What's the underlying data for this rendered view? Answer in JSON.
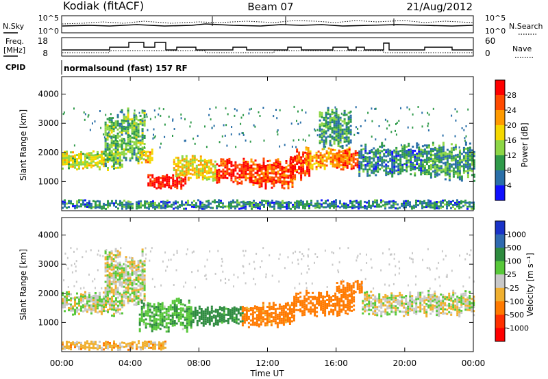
{
  "header": {
    "station": "Kodiak (fitACF)",
    "beam": "Beam 07",
    "date": "21/Aug/2012"
  },
  "noise_panel": {
    "left_label": "N.Sky",
    "right_label": "N.Search",
    "left_ticks": [
      "10^5",
      "10^0"
    ],
    "right_ticks": [
      "10^5",
      "10^0"
    ],
    "right_legend_style": "dotted"
  },
  "freq_panel": {
    "left_label_line1": "Freq.",
    "left_label_line2": "[MHz]",
    "right_label": "Nave",
    "left_ticks": [
      "18",
      "8"
    ],
    "right_ticks": [
      "60",
      "0"
    ],
    "right_legend_style": "dotted"
  },
  "cpid": {
    "label": "CPID",
    "text": "normalsound (fast) 157 RF"
  },
  "x_axis": {
    "label": "Time UT",
    "ticks": [
      "00:00",
      "04:00",
      "08:00",
      "12:00",
      "16:00",
      "20:00",
      "00:00"
    ],
    "hours": [
      0,
      4,
      8,
      12,
      16,
      20,
      24
    ]
  },
  "chart_data": [
    {
      "type": "heatmap",
      "panel": "power",
      "ylabel": "Slant Range [km]",
      "yticks": [
        1000,
        2000,
        3000,
        4000
      ],
      "ylim": [
        0,
        4600
      ],
      "xlim_hours": [
        0,
        24
      ],
      "colorbar": {
        "label": "Power [dB]",
        "ticks": [
          "28",
          "24",
          "20",
          "16",
          "12",
          "8",
          "4"
        ],
        "colors": [
          "#ff0000",
          "#ff4a00",
          "#ff9a00",
          "#f5d800",
          "#8dd646",
          "#2f9a4a",
          "#2a6fa8",
          "#1010ff"
        ]
      },
      "bands": [
        {
          "from_h": 0.0,
          "to_h": 3.5,
          "range_km": [
            1500,
            2000
          ],
          "level": 14
        },
        {
          "from_h": 2.5,
          "to_h": 4.8,
          "range_km": [
            1800,
            3300
          ],
          "level": 10
        },
        {
          "from_h": 4.5,
          "to_h": 5.3,
          "range_km": [
            1700,
            2100
          ],
          "level": 18
        },
        {
          "from_h": 5.0,
          "to_h": 7.2,
          "range_km": [
            800,
            1200
          ],
          "level": 28
        },
        {
          "from_h": 6.5,
          "to_h": 9.0,
          "range_km": [
            1150,
            1800
          ],
          "level": 16
        },
        {
          "from_h": 9.0,
          "to_h": 11.0,
          "range_km": [
            1000,
            1700
          ],
          "level": 26
        },
        {
          "from_h": 11.0,
          "to_h": 13.5,
          "range_km": [
            900,
            1700
          ],
          "level": 24
        },
        {
          "from_h": 13.3,
          "to_h": 14.4,
          "range_km": [
            1200,
            2000
          ],
          "level": 26
        },
        {
          "from_h": 14.2,
          "to_h": 16.8,
          "range_km": [
            1500,
            2100
          ],
          "level": 20
        },
        {
          "from_h": 15.0,
          "to_h": 16.8,
          "range_km": [
            2300,
            3400
          ],
          "level": 8
        },
        {
          "from_h": 16.0,
          "to_h": 17.3,
          "range_km": [
            1550,
            2050
          ],
          "level": 24
        },
        {
          "from_h": 17.3,
          "to_h": 21.0,
          "range_km": [
            1300,
            2200
          ],
          "level": 6
        },
        {
          "from_h": 21.0,
          "to_h": 24.0,
          "range_km": [
            1200,
            2200
          ],
          "level": 8
        },
        {
          "from_h": 0.0,
          "to_h": 24.0,
          "range_km": [
            100,
            350
          ],
          "level": 6
        }
      ]
    },
    {
      "type": "heatmap",
      "panel": "velocity",
      "ylabel": "Slant Range [km]",
      "yticks": [
        1000,
        2000,
        3000,
        4000
      ],
      "ylim": [
        0,
        4600
      ],
      "xlim_hours": [
        0,
        24
      ],
      "colorbar": {
        "label": "Velocity [m s⁻¹]",
        "ticks": [
          "1000",
          "500",
          "100",
          "25",
          "-25",
          "-100",
          "-500",
          "-1000"
        ],
        "colors": [
          "#1a33c8",
          "#2f6ab0",
          "#2e8b3f",
          "#58c83a",
          "#c8c8c8",
          "#f0b030",
          "#ff7a00",
          "#ff3000",
          "#ff0000"
        ]
      },
      "bands": [
        {
          "from_h": 0.0,
          "to_h": 3.5,
          "range_km": [
            1300,
            2000
          ],
          "velocity": 0
        },
        {
          "from_h": 2.5,
          "to_h": 4.8,
          "range_km": [
            1800,
            3300
          ],
          "velocity": 0
        },
        {
          "from_h": 4.5,
          "to_h": 7.5,
          "range_km": [
            800,
            1700
          ],
          "velocity": 80
        },
        {
          "from_h": 7.5,
          "to_h": 10.5,
          "range_km": [
            1000,
            1500
          ],
          "velocity": 150
        },
        {
          "from_h": 10.5,
          "to_h": 13.5,
          "range_km": [
            900,
            1600
          ],
          "velocity": -150
        },
        {
          "from_h": 13.5,
          "to_h": 17.0,
          "range_km": [
            1300,
            2000
          ],
          "velocity": -200
        },
        {
          "from_h": 16.0,
          "to_h": 17.5,
          "range_km": [
            2000,
            2400
          ],
          "velocity": -300
        },
        {
          "from_h": 17.5,
          "to_h": 24.0,
          "range_km": [
            1300,
            2000
          ],
          "velocity": 0
        },
        {
          "from_h": 0.0,
          "to_h": 6.0,
          "range_km": [
            100,
            350
          ],
          "velocity": -60
        }
      ]
    }
  ]
}
